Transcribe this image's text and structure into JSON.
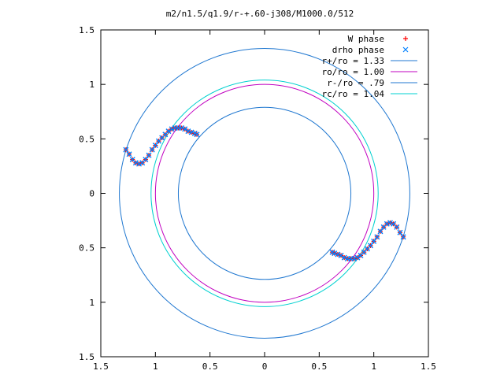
{
  "chart_data": {
    "type": "scatter",
    "title": "m2/n1.5/q1.9/r-+.60-j308/M1000.0/512",
    "xlim": [
      -1.5,
      1.5
    ],
    "ylim": [
      -1.5,
      1.5
    ],
    "x_ticks": [
      {
        "value": -1.5,
        "label": "1.5"
      },
      {
        "value": -1.0,
        "label": "1"
      },
      {
        "value": -0.5,
        "label": "0.5"
      },
      {
        "value": 0.0,
        "label": "0"
      },
      {
        "value": 0.5,
        "label": "0.5"
      },
      {
        "value": 1.0,
        "label": "1"
      },
      {
        "value": 1.5,
        "label": "1.5"
      }
    ],
    "y_ticks": [
      {
        "value": 1.5,
        "label": "1.5"
      },
      {
        "value": 1.0,
        "label": "1"
      },
      {
        "value": 0.5,
        "label": "0.5"
      },
      {
        "value": 0.0,
        "label": "0"
      },
      {
        "value": -0.5,
        "label": "0.5"
      },
      {
        "value": -1.0,
        "label": "1"
      },
      {
        "value": -1.5,
        "label": "1.5"
      }
    ],
    "grid": false,
    "legend_position": "top-right",
    "legend": [
      {
        "label": "W phase",
        "marker": "+",
        "color": "#ff0000"
      },
      {
        "label": "drho phase",
        "marker": "x",
        "color": "#0080ff"
      },
      {
        "label": "r+/ro = 1.33",
        "marker": "line",
        "color": "#1f77d0"
      },
      {
        "label": "ro/ro = 1.00",
        "marker": "line",
        "color": "#c000c0"
      },
      {
        "label": "r-/ro = .79",
        "marker": "line",
        "color": "#1f77d0"
      },
      {
        "label": "rc/ro = 1.04",
        "marker": "line",
        "color": "#00d0d0"
      }
    ],
    "circles": [
      {
        "name": "r+/ro",
        "radius": 1.33,
        "color": "#1f77d0"
      },
      {
        "name": "ro/ro",
        "radius": 1.0,
        "color": "#c000c0"
      },
      {
        "name": "r-/ro",
        "radius": 0.79,
        "color": "#1f77d0"
      },
      {
        "name": "rc/ro",
        "radius": 1.04,
        "color": "#00d0d0"
      }
    ],
    "phase_arms": [
      {
        "x": [
          -1.27,
          -1.24,
          -1.21,
          -1.18,
          -1.15,
          -1.12,
          -1.09,
          -1.06,
          -1.03,
          -1.0,
          -0.97,
          -0.94,
          -0.91,
          -0.88,
          -0.85,
          -0.82,
          -0.79,
          -0.76,
          -0.73,
          -0.7,
          -0.67,
          -0.64,
          -0.62
        ],
        "y": [
          0.4,
          0.36,
          0.31,
          0.28,
          0.27,
          0.28,
          0.31,
          0.35,
          0.4,
          0.44,
          0.48,
          0.51,
          0.54,
          0.57,
          0.59,
          0.6,
          0.6,
          0.6,
          0.59,
          0.57,
          0.56,
          0.55,
          0.54
        ]
      },
      {
        "x": [
          1.27,
          1.24,
          1.21,
          1.18,
          1.15,
          1.12,
          1.09,
          1.06,
          1.03,
          1.0,
          0.97,
          0.94,
          0.91,
          0.88,
          0.85,
          0.82,
          0.79,
          0.76,
          0.73,
          0.7,
          0.67,
          0.64,
          0.62
        ],
        "y": [
          -0.4,
          -0.36,
          -0.31,
          -0.28,
          -0.27,
          -0.28,
          -0.31,
          -0.35,
          -0.4,
          -0.44,
          -0.48,
          -0.51,
          -0.54,
          -0.57,
          -0.59,
          -0.6,
          -0.6,
          -0.6,
          -0.59,
          -0.57,
          -0.56,
          -0.55,
          -0.54
        ]
      }
    ]
  }
}
